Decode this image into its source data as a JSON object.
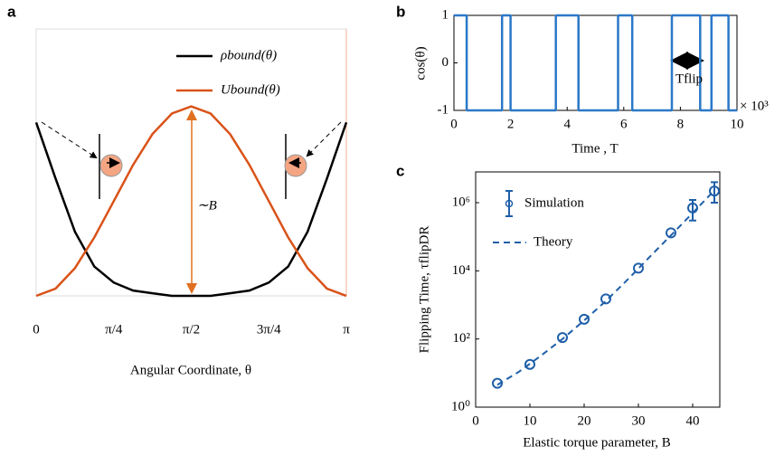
{
  "chart_data": [
    {
      "type": "line",
      "panel_label": "a",
      "xlabel": "Angular Coordinate, θ",
      "annotation": "∼B",
      "xlim": [
        0,
        3.1416
      ],
      "ylim": [
        0,
        1
      ],
      "xticks": [
        0,
        {
          "value": 0.7854,
          "label": "π/4"
        },
        {
          "value": 1.5708,
          "label": "π/2"
        },
        {
          "value": 2.3562,
          "label": "3π/4"
        },
        {
          "value": 3.1416,
          "label": "π"
        }
      ],
      "x": [
        0,
        0.1963,
        0.3927,
        0.589,
        0.7854,
        0.9817,
        1.1781,
        1.3744,
        1.5708,
        1.7671,
        1.9635,
        2.1598,
        2.3562,
        2.5525,
        2.7489,
        2.9452,
        3.1416
      ],
      "series": [
        {
          "name": "ρbound(θ)",
          "color": "#000000",
          "values": [
            0.65,
            0.44,
            0.24,
            0.11,
            0.05,
            0.02,
            0.01,
            0,
            0,
            0,
            0.01,
            0.02,
            0.05,
            0.11,
            0.24,
            0.44,
            0.65
          ]
        },
        {
          "name": "Ubound(θ)",
          "color": "#d95319",
          "values": [
            0,
            0.027,
            0.104,
            0.219,
            0.355,
            0.491,
            0.606,
            0.683,
            0.71,
            0.683,
            0.606,
            0.491,
            0.355,
            0.219,
            0.104,
            0.027,
            0
          ]
        }
      ]
    },
    {
      "type": "line",
      "panel_label": "b",
      "xlabel": "Time , T",
      "ylabel": "cos(θ)",
      "x_multiplier": "× 10³",
      "annotation": "Tflip",
      "xlim": [
        0,
        10
      ],
      "ylim": [
        -1,
        1
      ],
      "xticks": [
        0,
        2,
        4,
        6,
        8,
        10
      ],
      "yticks": [
        -1,
        0,
        1
      ],
      "x": [
        0,
        0.45,
        0.45,
        1.7,
        1.7,
        2.0,
        2.0,
        3.6,
        3.6,
        4.4,
        4.4,
        5.8,
        5.8,
        6.3,
        6.3,
        7.7,
        7.7,
        8.7,
        8.7,
        9.1,
        9.1,
        9.7,
        9.7,
        10
      ],
      "series": [
        {
          "color": "#2a78c8",
          "values": [
            1,
            1,
            -1,
            -1,
            1,
            1,
            -1,
            -1,
            1,
            1,
            -1,
            -1,
            1,
            1,
            -1,
            -1,
            1,
            1,
            -1,
            -1,
            1,
            1,
            -1,
            -1
          ]
        }
      ]
    },
    {
      "type": "scatter",
      "panel_label": "c",
      "xlabel": "Elastic torque parameter, B",
      "ylabel": "Flipping Time,  τflipDR",
      "log_y": true,
      "xlim": [
        0,
        45
      ],
      "ylim": [
        1,
        8000000
      ],
      "xticks": [
        0,
        10,
        20,
        30,
        40
      ],
      "yticks": [
        {
          "value": 1,
          "label": "10⁰"
        },
        {
          "value": 100,
          "label": "10²"
        },
        {
          "value": 10000,
          "label": "10⁴"
        },
        {
          "value": 1000000,
          "label": "10⁶"
        }
      ],
      "series": [
        {
          "name": "Simulation",
          "color": "#1f5fa8",
          "style": "markers",
          "x": [
            4,
            10,
            16,
            20,
            24,
            30,
            36,
            40,
            44
          ],
          "values": [
            5,
            18,
            110,
            380,
            1500,
            12000,
            130000,
            700000,
            2200000
          ],
          "err_low": [
            null,
            null,
            null,
            null,
            null,
            null,
            null,
            300000,
            1000000
          ],
          "err_high": [
            null,
            null,
            null,
            null,
            null,
            null,
            null,
            1200000,
            4000000
          ]
        },
        {
          "name": "Theory",
          "color": "#1f5fa8",
          "style": "dashed",
          "x": [
            4,
            8,
            12,
            16,
            20,
            24,
            28,
            32,
            36,
            40,
            44
          ],
          "values": [
            4.5,
            11,
            32,
            100,
            350,
            1300,
            5500,
            25000,
            110000,
            500000,
            2300000
          ]
        }
      ]
    }
  ]
}
